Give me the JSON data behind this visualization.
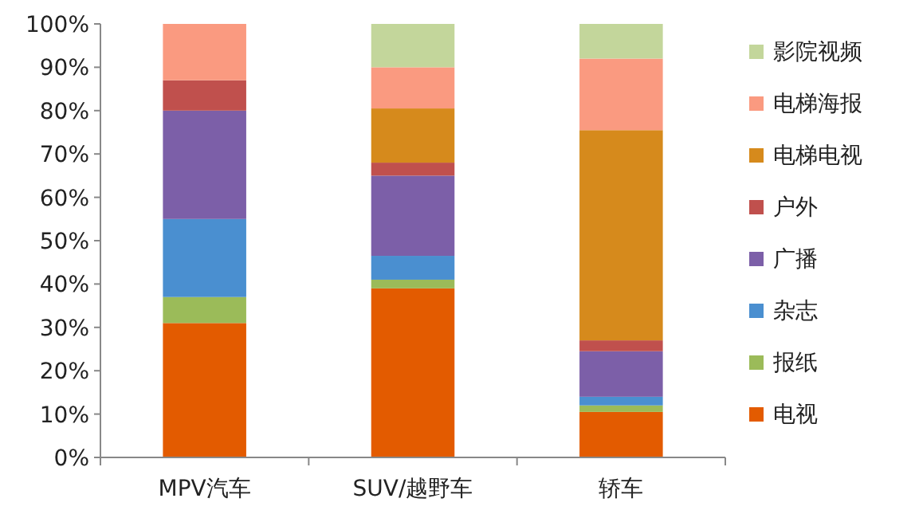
{
  "chart_data": {
    "type": "bar",
    "stacked": true,
    "categories": [
      "MPV汽车",
      "SUV/越野车",
      "轿车"
    ],
    "series": [
      {
        "name": "电视",
        "color": "#e35b00",
        "values": [
          31,
          39,
          10.5
        ]
      },
      {
        "name": "报纸",
        "color": "#9bbb59",
        "values": [
          6,
          2,
          1.5
        ]
      },
      {
        "name": "杂志",
        "color": "#4a8fd0",
        "values": [
          18,
          5.5,
          2
        ]
      },
      {
        "name": "广播",
        "color": "#7c5fa8",
        "values": [
          25,
          18.5,
          10.5
        ]
      },
      {
        "name": "户外",
        "color": "#c0504d",
        "values": [
          7,
          3,
          2.5
        ]
      },
      {
        "name": "电梯电视",
        "color": "#d68a1c",
        "values": [
          0,
          12.5,
          48.5
        ]
      },
      {
        "name": "电梯海报",
        "color": "#fa9a80",
        "values": [
          13,
          9.5,
          16.5
        ]
      },
      {
        "name": "影院视频",
        "color": "#c3d69b",
        "values": [
          0,
          10,
          8
        ]
      }
    ],
    "ylim": [
      0,
      100
    ],
    "yticks": [
      {
        "value": 0,
        "label": "0%"
      },
      {
        "value": 10,
        "label": "10%"
      },
      {
        "value": 20,
        "label": "20%"
      },
      {
        "value": 30,
        "label": "30%"
      },
      {
        "value": 40,
        "label": "40%"
      },
      {
        "value": 50,
        "label": "50%"
      },
      {
        "value": 60,
        "label": "60%"
      },
      {
        "value": 70,
        "label": "70%"
      },
      {
        "value": 80,
        "label": "80%"
      },
      {
        "value": 90,
        "label": "90%"
      },
      {
        "value": 100,
        "label": "100%"
      }
    ],
    "grid": false,
    "legend": "right"
  }
}
